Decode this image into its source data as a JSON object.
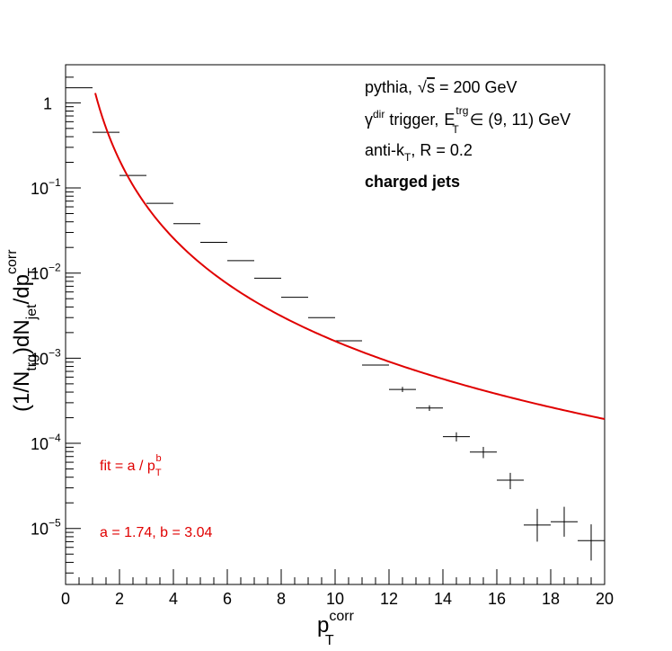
{
  "chart_data": {
    "type": "scatter",
    "xlabel": "p",
    "xlabel_sup": "corr",
    "xlabel_sub": "T",
    "ylabel": "(1/N)dN/dp",
    "ylim": [
      2.2e-06,
      2.8
    ],
    "xlim": [
      0,
      20
    ],
    "log_y": true,
    "grid": false,
    "x_ticks": [
      0,
      2,
      4,
      6,
      8,
      10,
      12,
      14,
      16,
      18,
      20
    ],
    "x_tick_labels": [
      "0",
      "2",
      "4",
      "6",
      "8",
      "10",
      "12",
      "14",
      "16",
      "18",
      "20"
    ],
    "y_ticks": [
      1,
      0.1,
      0.01,
      0.001,
      0.0001,
      1e-05
    ],
    "y_tick_labels": [
      {
        "base": "1",
        "exp": ""
      },
      {
        "base": "10",
        "exp": "−1"
      },
      {
        "base": "10",
        "exp": "−2"
      },
      {
        "base": "10",
        "exp": "−3"
      },
      {
        "base": "10",
        "exp": "−4"
      },
      {
        "base": "10",
        "exp": "−5"
      }
    ],
    "points": [
      {
        "x": 0.5,
        "y": 1.5,
        "xerr": 0.5,
        "yerr_low": 0.0,
        "yerr_high": 0.0
      },
      {
        "x": 1.5,
        "y": 0.45,
        "xerr": 0.5,
        "yerr_low": 0.0,
        "yerr_high": 0.0
      },
      {
        "x": 2.5,
        "y": 0.14,
        "xerr": 0.5,
        "yerr_low": 0.0,
        "yerr_high": 0.0
      },
      {
        "x": 3.5,
        "y": 0.066,
        "xerr": 0.5,
        "yerr_low": 0.0,
        "yerr_high": 0.0
      },
      {
        "x": 4.5,
        "y": 0.038,
        "xerr": 0.5,
        "yerr_low": 0.0,
        "yerr_high": 0.0
      },
      {
        "x": 5.5,
        "y": 0.023,
        "xerr": 0.5,
        "yerr_low": 0.0,
        "yerr_high": 0.0
      },
      {
        "x": 6.5,
        "y": 0.014,
        "xerr": 0.5,
        "yerr_low": 0.0,
        "yerr_high": 0.0
      },
      {
        "x": 7.5,
        "y": 0.0087,
        "xerr": 0.5,
        "yerr_low": 0.0,
        "yerr_high": 0.0
      },
      {
        "x": 8.5,
        "y": 0.0052,
        "xerr": 0.5,
        "yerr_low": 0.0,
        "yerr_high": 0.0
      },
      {
        "x": 9.5,
        "y": 0.003,
        "xerr": 0.5,
        "yerr_low": 0.0,
        "yerr_high": 0.0
      },
      {
        "x": 10.5,
        "y": 0.0016,
        "xerr": 0.5,
        "yerr_low": 0.0,
        "yerr_high": 0.0
      },
      {
        "x": 11.5,
        "y": 0.00083,
        "xerr": 0.5,
        "yerr_low": 0.0,
        "yerr_high": 0.0
      },
      {
        "x": 12.5,
        "y": 0.00043,
        "xerr": 0.5,
        "yerr_low": 3e-05,
        "yerr_high": 3e-05
      },
      {
        "x": 13.5,
        "y": 0.00026,
        "xerr": 0.5,
        "yerr_low": 2e-05,
        "yerr_high": 2e-05
      },
      {
        "x": 14.5,
        "y": 0.00012,
        "xerr": 0.5,
        "yerr_low": 1.5e-05,
        "yerr_high": 1.5e-05
      },
      {
        "x": 15.5,
        "y": 7.9e-05,
        "xerr": 0.5,
        "yerr_low": 1.2e-05,
        "yerr_high": 1.2e-05
      },
      {
        "x": 16.5,
        "y": 3.7e-05,
        "xerr": 0.5,
        "yerr_low": 8e-06,
        "yerr_high": 8e-06
      },
      {
        "x": 17.5,
        "y": 1.1e-05,
        "xerr": 0.5,
        "yerr_low": 4e-06,
        "yerr_high": 6e-06
      },
      {
        "x": 18.5,
        "y": 1.2e-05,
        "xerr": 0.5,
        "yerr_low": 4e-06,
        "yerr_high": 6e-06
      },
      {
        "x": 19.5,
        "y": 7.2e-06,
        "xerr": 0.5,
        "yerr_low": 3e-06,
        "yerr_high": 4e-06
      }
    ],
    "fit": {
      "a": 1.74,
      "b": 3.04,
      "x_start": 1.1,
      "x_end": 20,
      "color": "#e00000"
    },
    "annotations": [
      "pythia, √s = 200 GeV",
      "γ^dir trigger, E_T^trg ∈ (9, 11) GeV",
      "anti-k_T, R = 0.2",
      "charged jets",
      "fit = a / p_T^b",
      "a = 1.74, b = 3.04"
    ]
  },
  "legend": {
    "line1_prefix": "pythia,",
    "line1_sqrt": "√",
    "line1_s": "s",
    "line1_suffix": "= 200 GeV",
    "line2_gamma": "γ",
    "line2_gamma_sup": "dir",
    "line2_text": "trigger,",
    "line2_E": "E",
    "line2_E_sup": "trg",
    "line2_E_sub": "T",
    "line2_suffix": "∈ (9, 11) GeV",
    "line3_prefix": "anti-k",
    "line3_sub": "T",
    "line3_suffix": ", R = 0.2",
    "line4": "charged jets",
    "fit_prefix": "fit = a / p",
    "fit_sub": "T",
    "fit_sup": "b",
    "fit_params": "a = 1.74, b = 3.04"
  },
  "y_title": {
    "part1": "(1/N",
    "part1_sub": "trg",
    "part2": ")dN",
    "part2_sub": "jet",
    "part3": "/dp",
    "part3_sup": "corr",
    "part3_sub": "T"
  },
  "x_title": {
    "main": "p",
    "sup": "corr",
    "sub": "T"
  },
  "colors": {
    "fit": "#e00000",
    "points": "#000000",
    "axis": "#000000"
  }
}
